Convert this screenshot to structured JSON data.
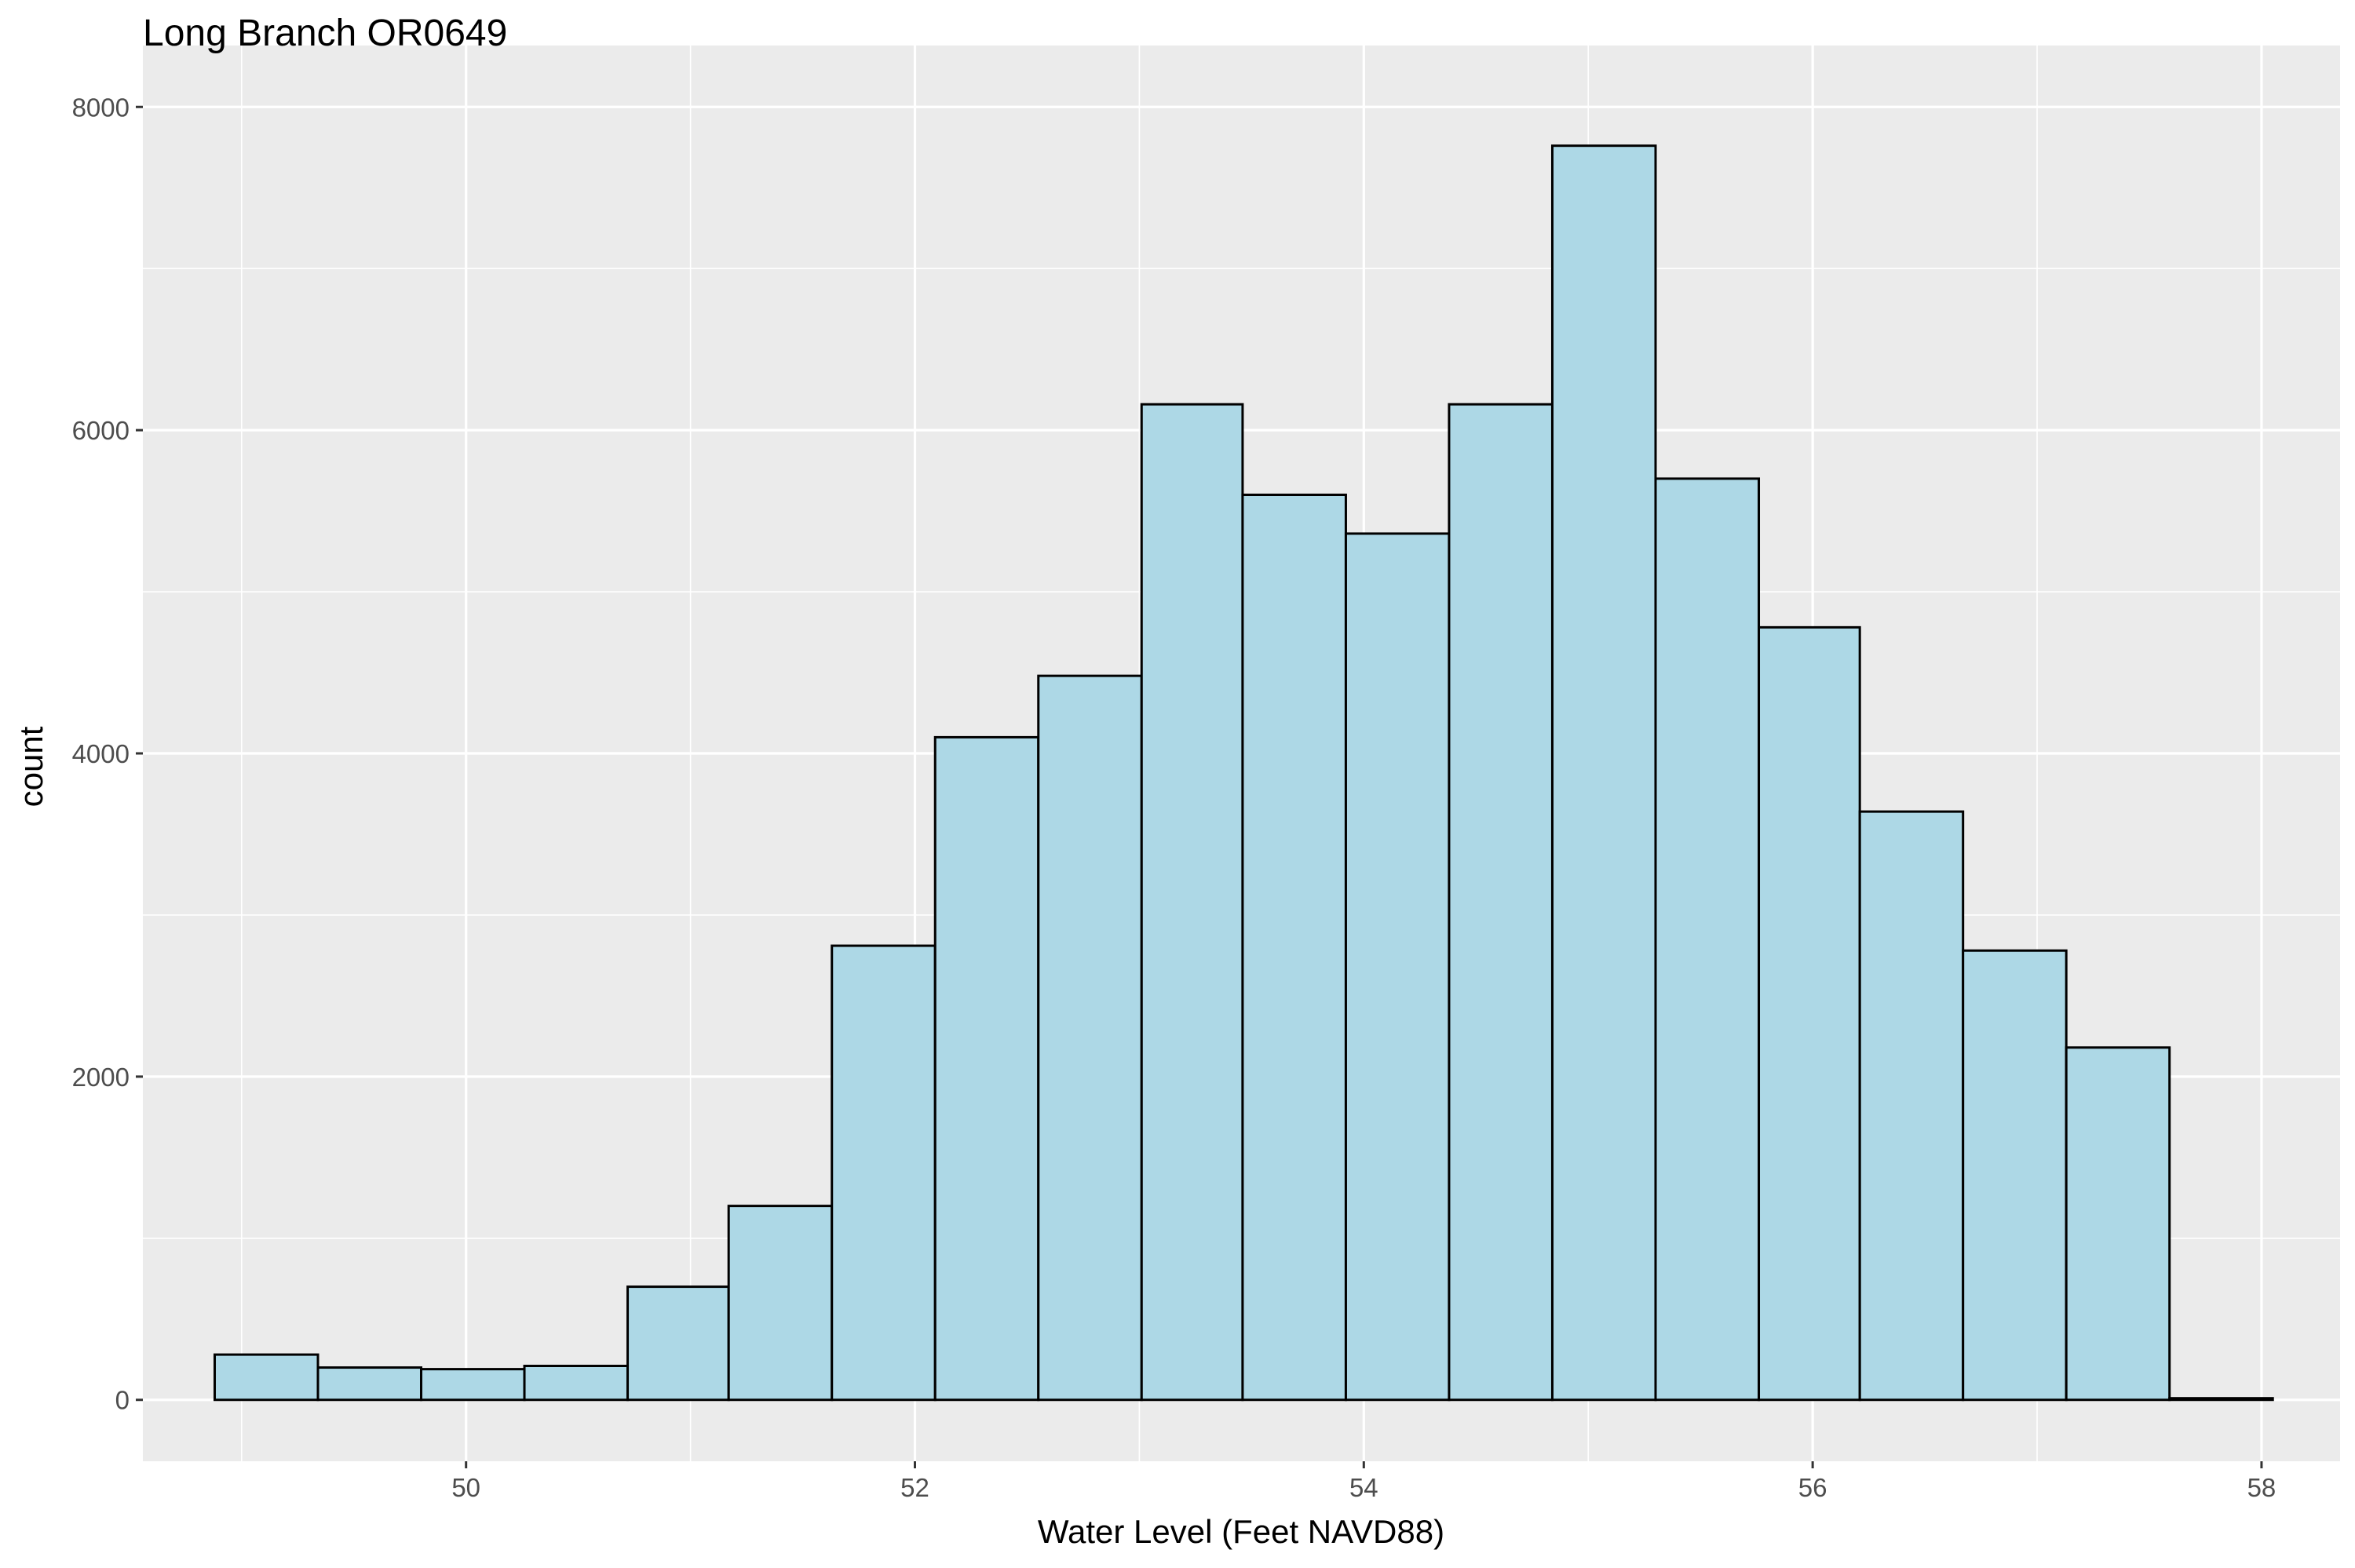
{
  "chart_data": {
    "type": "bar",
    "title": "Long Branch OR0649",
    "xlabel": "Water Level (Feet NAVD88)",
    "ylabel": "count",
    "xlim": [
      48.56,
      58.35
    ],
    "ylim": [
      -380,
      8380
    ],
    "x_ticks": [
      50,
      52,
      54,
      56,
      58
    ],
    "x_tick_labels": [
      "50",
      "52",
      "54",
      "56",
      "58"
    ],
    "y_ticks": [
      0,
      2000,
      4000,
      6000,
      8000
    ],
    "y_tick_labels": [
      "0",
      "2000",
      "4000",
      "6000",
      "8000"
    ],
    "grid": true,
    "bins": [
      {
        "x0": 48.88,
        "x1": 49.34,
        "count": 280
      },
      {
        "x0": 49.34,
        "x1": 49.8,
        "count": 200
      },
      {
        "x0": 49.8,
        "x1": 50.26,
        "count": 190
      },
      {
        "x0": 50.26,
        "x1": 50.72,
        "count": 210
      },
      {
        "x0": 50.72,
        "x1": 51.17,
        "count": 700
      },
      {
        "x0": 51.17,
        "x1": 51.63,
        "count": 1200
      },
      {
        "x0": 51.63,
        "x1": 52.09,
        "count": 2810
      },
      {
        "x0": 52.09,
        "x1": 52.55,
        "count": 4100
      },
      {
        "x0": 52.55,
        "x1": 53.01,
        "count": 4480
      },
      {
        "x0": 53.01,
        "x1": 53.46,
        "count": 6160
      },
      {
        "x0": 53.46,
        "x1": 53.92,
        "count": 5600
      },
      {
        "x0": 53.92,
        "x1": 54.38,
        "count": 5360
      },
      {
        "x0": 54.38,
        "x1": 54.84,
        "count": 6160
      },
      {
        "x0": 54.84,
        "x1": 55.3,
        "count": 7760
      },
      {
        "x0": 55.3,
        "x1": 55.76,
        "count": 5700
      },
      {
        "x0": 55.76,
        "x1": 56.21,
        "count": 4780
      },
      {
        "x0": 56.21,
        "x1": 56.67,
        "count": 3640
      },
      {
        "x0": 56.67,
        "x1": 57.13,
        "count": 2780
      },
      {
        "x0": 57.13,
        "x1": 57.59,
        "count": 2180
      },
      {
        "x0": 57.59,
        "x1": 58.05,
        "count": 10
      }
    ]
  },
  "colors": {
    "panel_background": "#ebebeb",
    "grid_major": "#ffffff",
    "bar_fill": "#add8e6",
    "bar_outline": "#000000",
    "tick_text": "#4d4d4d",
    "tick_mark": "#333333",
    "title_text": "#000000"
  }
}
